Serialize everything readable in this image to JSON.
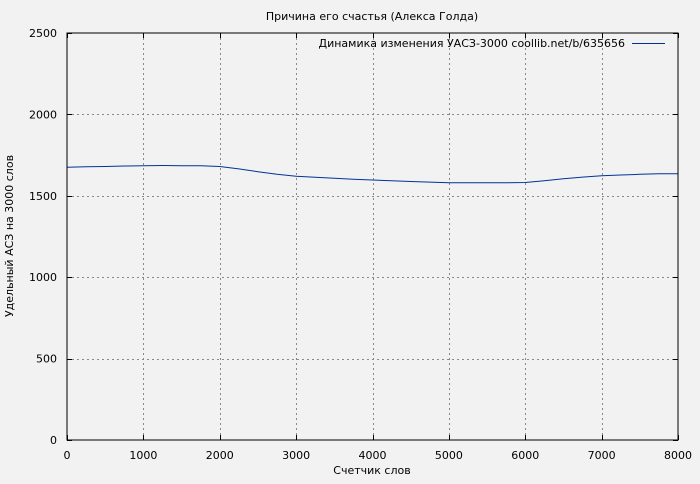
{
  "chart_data": {
    "type": "line",
    "title": "Причина его счастья (Алекса Голда)",
    "xlabel": "Счетчик слов",
    "ylabel": "Удельный АСЗ на 3000 слов",
    "xlim": [
      0,
      8000
    ],
    "ylim": [
      0,
      2500
    ],
    "xticks": [
      0,
      1000,
      2000,
      3000,
      4000,
      5000,
      6000,
      7000,
      8000
    ],
    "yticks": [
      0,
      500,
      1000,
      1500,
      2000,
      2500
    ],
    "grid": true,
    "legend_position": "top-right",
    "series": [
      {
        "name": "Динамика изменения УАСЗ-3000 coollib.net/b/635656",
        "color": "#003399",
        "x": [
          0,
          250,
          500,
          750,
          1000,
          1250,
          1500,
          1750,
          2000,
          2250,
          2500,
          2750,
          3000,
          3250,
          3500,
          3750,
          4000,
          4250,
          4500,
          4750,
          5000,
          5250,
          5500,
          5750,
          6000,
          6250,
          6500,
          6750,
          7000,
          7250,
          7500,
          7750,
          8000
        ],
        "values": [
          1675,
          1678,
          1680,
          1683,
          1685,
          1686,
          1685,
          1684,
          1680,
          1665,
          1648,
          1632,
          1620,
          1614,
          1608,
          1602,
          1597,
          1592,
          1588,
          1584,
          1580,
          1580,
          1580,
          1580,
          1582,
          1593,
          1605,
          1615,
          1623,
          1628,
          1632,
          1635,
          1636
        ]
      }
    ]
  }
}
